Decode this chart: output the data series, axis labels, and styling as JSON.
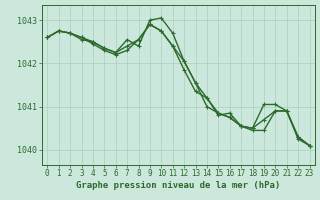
{
  "x": [
    0,
    1,
    2,
    3,
    4,
    5,
    6,
    7,
    8,
    9,
    10,
    11,
    12,
    13,
    14,
    15,
    16,
    17,
    18,
    19,
    20,
    21,
    22,
    23
  ],
  "series": [
    [
      1042.6,
      1042.75,
      1042.7,
      1042.55,
      1042.5,
      1042.35,
      1042.25,
      1042.55,
      1042.4,
      1043.0,
      1043.05,
      1042.7,
      1042.05,
      1041.55,
      1041.0,
      1040.85,
      1040.75,
      1040.55,
      1040.45,
      1040.45,
      1040.9,
      1040.9,
      1040.25,
      1040.1
    ],
    [
      1042.6,
      1042.75,
      1042.7,
      1042.6,
      1042.45,
      1042.3,
      1042.2,
      1042.3,
      1042.55,
      1042.9,
      1042.75,
      1042.4,
      1041.85,
      1041.35,
      1041.2,
      1040.8,
      1040.85,
      1040.55,
      1040.5,
      1041.05,
      1041.05,
      1040.9,
      1040.3,
      1040.1
    ],
    [
      1042.6,
      1042.75,
      1042.7,
      1042.6,
      1042.5,
      1042.35,
      1042.25,
      1042.4,
      1042.55,
      1042.9,
      1042.75,
      1042.4,
      1042.05,
      1041.55,
      1041.2,
      1040.85,
      1040.75,
      1040.55,
      1040.5,
      1040.7,
      1040.9,
      1040.9,
      1040.3,
      1040.1
    ]
  ],
  "ylim": [
    1039.65,
    1043.35
  ],
  "yticks": [
    1040,
    1041,
    1042,
    1043
  ],
  "xticks": [
    0,
    1,
    2,
    3,
    4,
    5,
    6,
    7,
    8,
    9,
    10,
    11,
    12,
    13,
    14,
    15,
    16,
    17,
    18,
    19,
    20,
    21,
    22,
    23
  ],
  "xlabel": "Graphe pression niveau de la mer (hPa)",
  "line_color": "#2d6a2d",
  "bg_color": "#cce8dc",
  "grid_color": "#aacfbe",
  "axis_color": "#2d6a2d",
  "marker": "+",
  "linewidth": 1.0,
  "markersize": 3.5,
  "tick_fontsize": 5.5,
  "xlabel_fontsize": 6.5
}
